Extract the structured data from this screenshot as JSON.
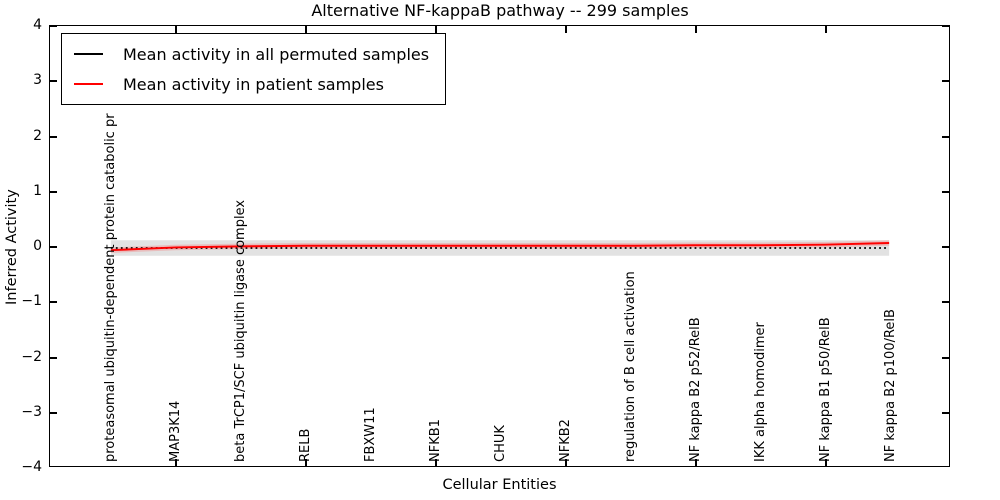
{
  "title": "Alternative NF-kappaB pathway -- 299 samples",
  "axes": {
    "xlabel": "Cellular Entities",
    "ylabel": "Inferred Activity",
    "y_ticks": [
      "4",
      "3",
      "2",
      "1",
      "0",
      "−1",
      "−2",
      "−3",
      "−4"
    ]
  },
  "legend": {
    "entries": [
      {
        "label": "Mean activity in all permuted samples",
        "color": "#000000"
      },
      {
        "label": "Mean activity in patient samples",
        "color": "#ff0000"
      }
    ]
  },
  "chart_data": {
    "type": "line",
    "title": "Alternative NF-kappaB pathway -- 299 samples",
    "xlabel": "Cellular Entities",
    "ylabel": "Inferred Activity",
    "ylim": [
      -4,
      4
    ],
    "grid": false,
    "legend_position": "upper left",
    "categories": [
      "proteasomal ubiquitin-dependent protein catabolic pr",
      "MAP3K14",
      "beta TrCP1/SCF ubiquitin ligase complex",
      "RELB",
      "FBXW11",
      "NFKB1",
      "CHUK",
      "NFKB2",
      "regulation of B cell activation",
      "NF kappa B2 p52/RelB",
      "IKK alpha homodimer",
      "NF kappa B1 p50/RelB",
      "NF kappa B2 p100/RelB"
    ],
    "x_tick_indices": [
      1,
      3,
      5,
      7,
      9,
      11
    ],
    "series": [
      {
        "name": "Mean activity in all permuted samples",
        "color": "#000000",
        "style": "dotted",
        "band_halfwidth": 0.14,
        "band_color": "#e2e2e2",
        "values": [
          0.0,
          0.0,
          0.0,
          0.0,
          0.0,
          0.0,
          0.0,
          0.0,
          0.0,
          0.0,
          0.0,
          0.0,
          0.0
        ]
      },
      {
        "name": "Mean activity in patient samples",
        "color": "#ff0000",
        "style": "solid",
        "band_halfwidth": 0.05,
        "band_color": "rgba(255,60,60,0.22)",
        "values": [
          -0.04,
          0.01,
          0.03,
          0.04,
          0.04,
          0.04,
          0.04,
          0.04,
          0.04,
          0.05,
          0.05,
          0.06,
          0.09
        ]
      }
    ]
  }
}
